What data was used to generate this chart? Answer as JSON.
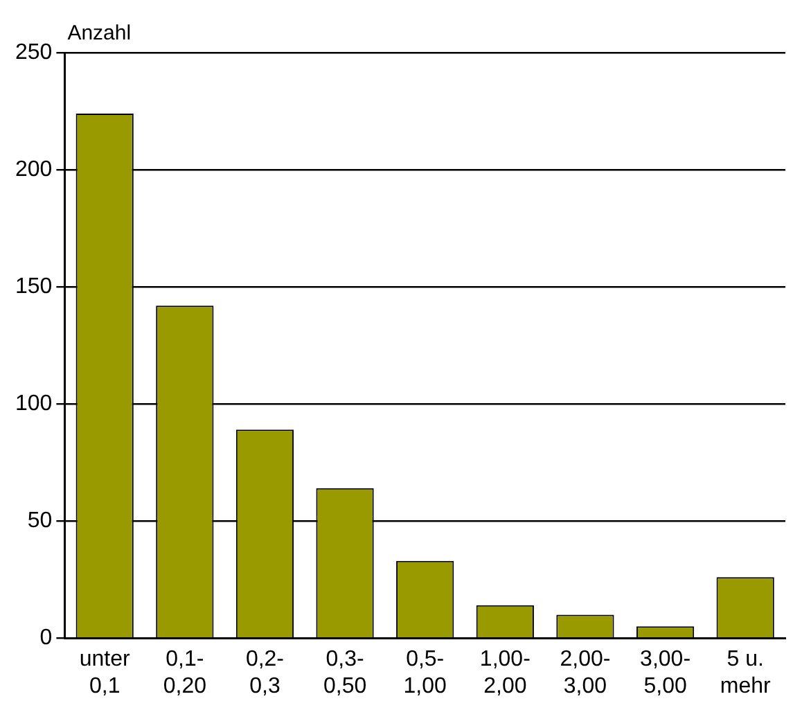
{
  "chart_data": {
    "type": "bar",
    "ylabel": "Anzahl",
    "categories": [
      "unter\n0,1",
      "0,1-\n0,20",
      "0,2-\n0,3",
      "0,3-\n0,50",
      "0,5-\n1,00",
      "1,00-\n2,00",
      "2,00-\n3,00",
      "3,00-\n5,00",
      "5 u.\nmehr"
    ],
    "values": [
      224,
      142,
      89,
      64,
      33,
      14,
      10,
      5,
      26
    ],
    "color": "#999900",
    "ylim": [
      0,
      250
    ],
    "yticks": [
      0,
      50,
      100,
      150,
      200,
      250
    ],
    "grid": "y",
    "legend": false
  }
}
